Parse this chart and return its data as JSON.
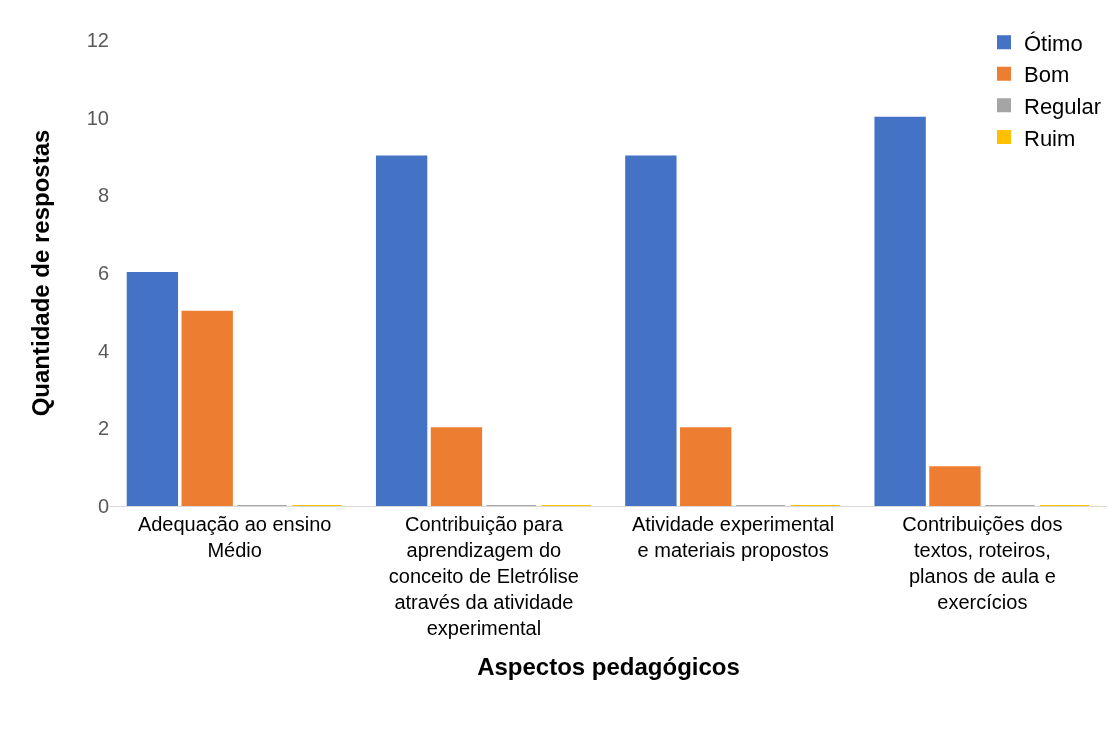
{
  "chart_data": {
    "type": "bar",
    "xlabel": "Aspectos pedagógicos",
    "ylabel": "Quantidade de respostas",
    "categories": [
      "Adequação ao ensino Médio",
      "Contribuição para aprendizagem do conceito de Eletrólise através da atividade experimental",
      "Atividade experimental e materiais propostos",
      "Contribuições dos textos, roteiros, planos de aula e exercícios"
    ],
    "series": [
      {
        "name": "Ótimo",
        "color": "#4472c4",
        "values": [
          6,
          9,
          9,
          10
        ]
      },
      {
        "name": "Bom",
        "color": "#ed7d31",
        "values": [
          5,
          2,
          2,
          1
        ]
      },
      {
        "name": "Regular",
        "color": "#a5a5a5",
        "values": [
          0,
          0,
          0,
          0
        ]
      },
      {
        "name": "Ruim",
        "color": "#ffc000",
        "values": [
          0,
          0,
          0,
          0
        ]
      }
    ],
    "ylim": [
      0,
      12
    ],
    "yticks": [
      0,
      2,
      4,
      6,
      8,
      10,
      12
    ],
    "legend": "top right"
  }
}
